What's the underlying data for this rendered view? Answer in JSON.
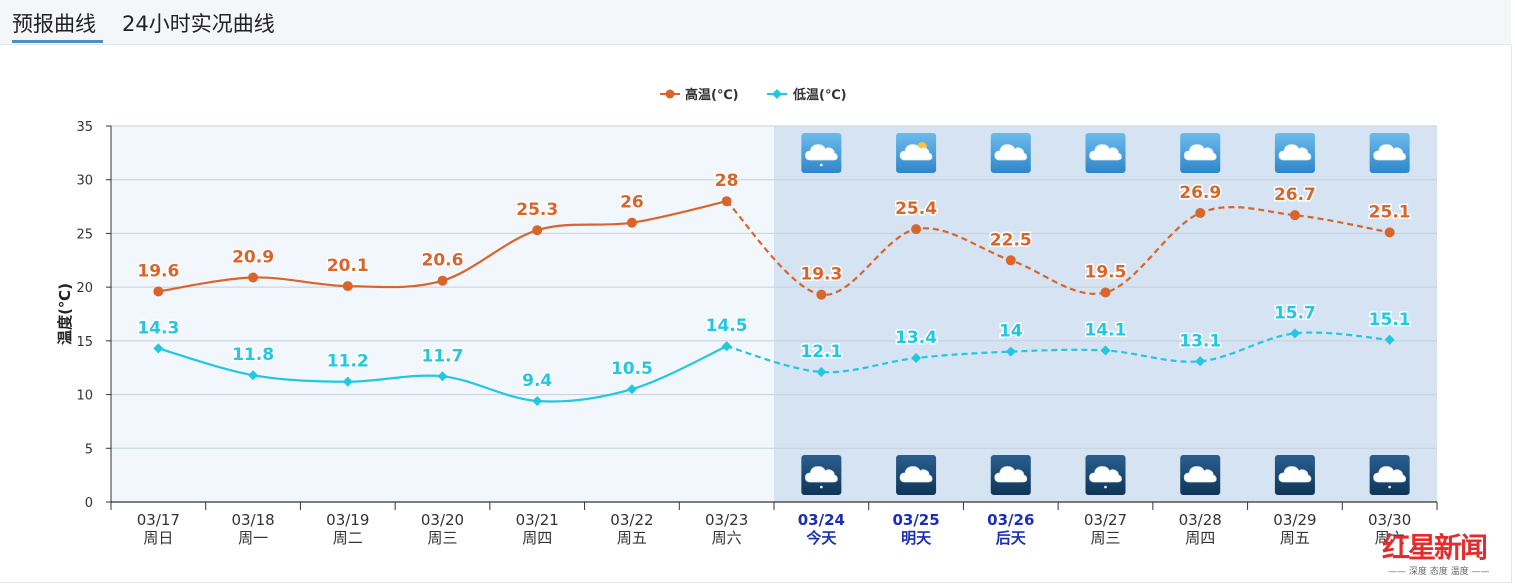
{
  "tabs": [
    {
      "label": "预报曲线",
      "active": true
    },
    {
      "label": "24小时实况曲线",
      "active": false
    }
  ],
  "colors": {
    "high": "#d9652b",
    "low": "#22c7e0",
    "forecast_bg": "#d5e3f3",
    "past_bg": "#f1f7fc",
    "today_label": "#1a2fb5"
  },
  "chart_data": {
    "type": "line",
    "title": "",
    "xlabel": "",
    "ylabel": "温度(℃)",
    "ylim": [
      0,
      35
    ],
    "yticks": [
      0,
      5,
      10,
      15,
      20,
      25,
      30,
      35
    ],
    "grid": true,
    "legend_position": "top-center",
    "categories": [
      "03/17",
      "03/18",
      "03/19",
      "03/20",
      "03/21",
      "03/22",
      "03/23",
      "03/24",
      "03/25",
      "03/26",
      "03/27",
      "03/28",
      "03/29",
      "03/30"
    ],
    "weekdays": [
      "周日",
      "周一",
      "周二",
      "周三",
      "周四",
      "周五",
      "周六",
      "今天",
      "明天",
      "后天",
      "周三",
      "周四",
      "周五",
      "周六"
    ],
    "forecast_start_index": 7,
    "highlight_indices": [
      7,
      8,
      9
    ],
    "series": [
      {
        "name": "高温(℃)",
        "values": [
          19.6,
          20.9,
          20.1,
          20.6,
          25.3,
          26,
          28,
          19.3,
          25.4,
          22.5,
          19.5,
          26.9,
          26.7,
          25.1
        ]
      },
      {
        "name": "低温(℃)",
        "values": [
          14.3,
          11.8,
          11.2,
          11.7,
          9.4,
          10.5,
          14.5,
          12.1,
          13.4,
          14,
          14.1,
          13.1,
          15.7,
          15.1
        ]
      }
    ],
    "day_icons": [
      "cloud-drizzle-icon",
      "partly-sunny-icon",
      "cloud-icon",
      "cloud-icon",
      "cloud-icon",
      "cloud-icon",
      "cloud-icon"
    ],
    "night_icons": [
      "cloud-drizzle-night-icon",
      "cloud-night-icon",
      "cloud-night-icon",
      "cloud-drizzle-night-icon",
      "cloud-night-icon",
      "cloud-night-icon",
      "cloud-drizzle-night-icon"
    ]
  },
  "watermark": {
    "title": "红星新闻",
    "slogan": "—— 深度 态度 温度 ——"
  }
}
